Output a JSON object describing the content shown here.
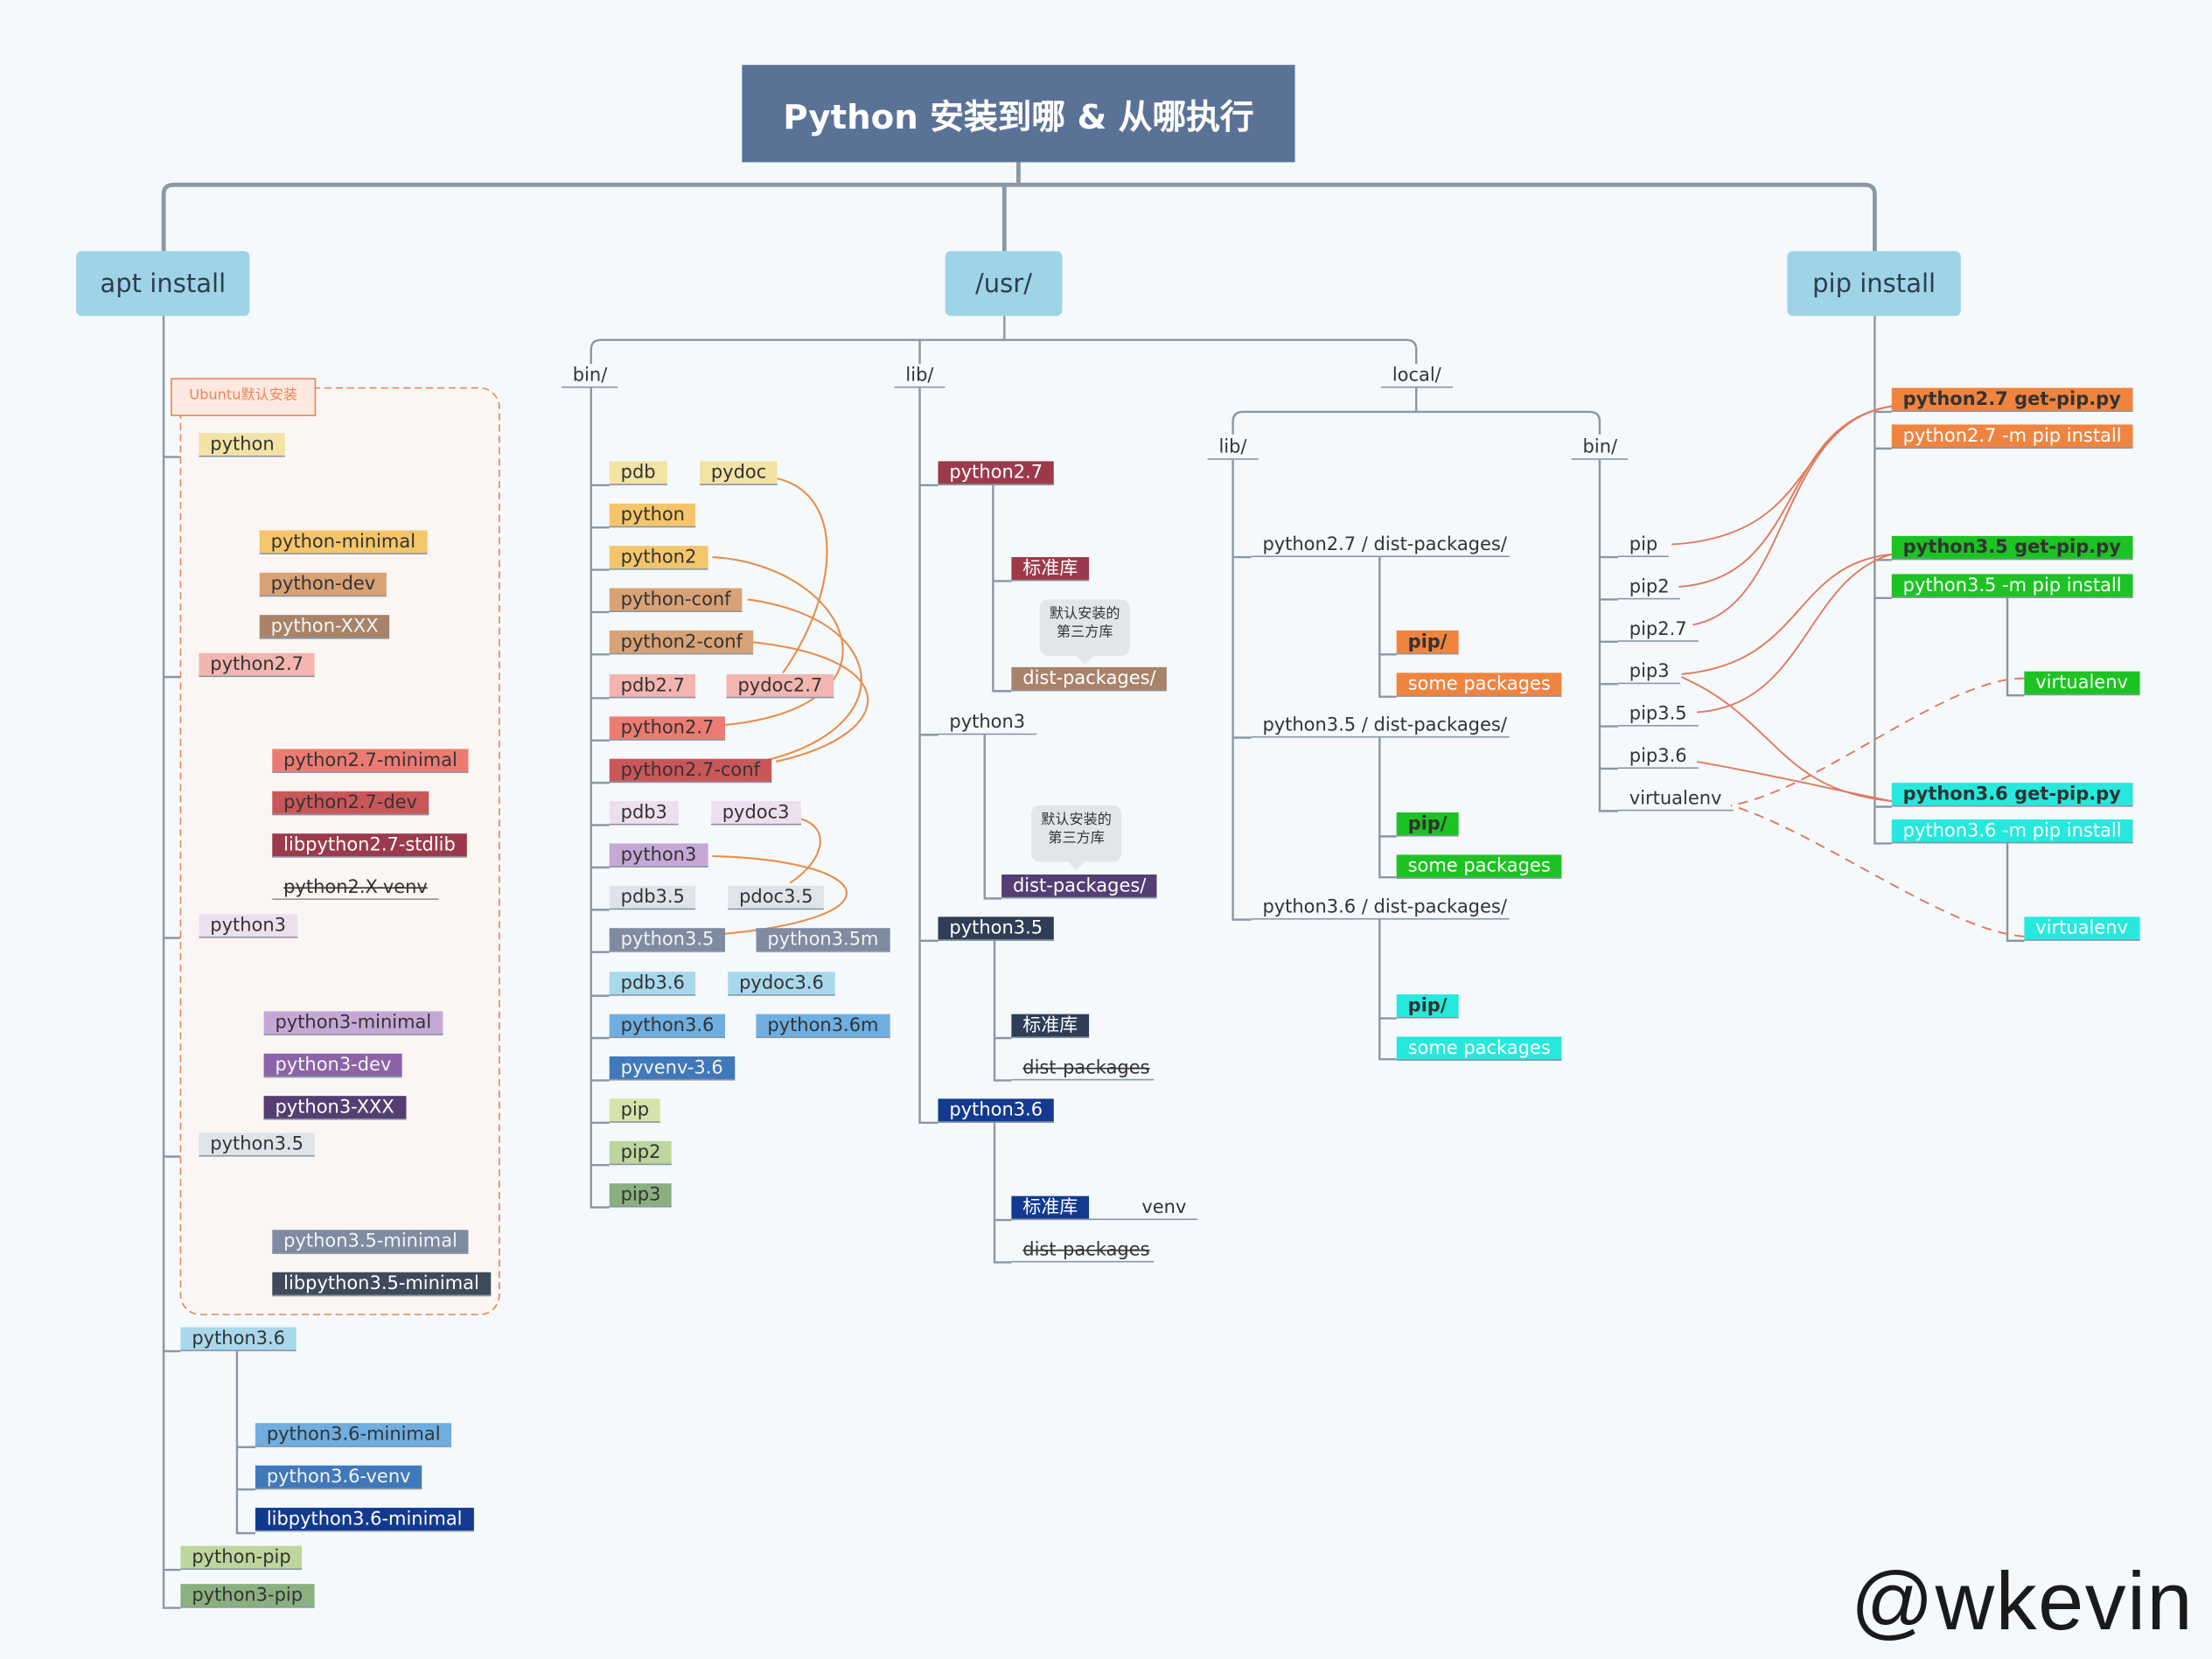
{
  "title": "Python 安装到哪 & 从哪执行",
  "watermark": "@wkevin",
  "colors": {
    "title_bg": "#5b7297",
    "branch_bg": "#9fd3e8",
    "arrow": "#e27a5e",
    "line": "#8a97a5"
  },
  "branches": {
    "apt": "apt install",
    "usr": "/usr/",
    "pip": "pip install"
  },
  "ubuntu_label": "Ubuntu默认安装",
  "usr_dirs": {
    "bin": "bin/",
    "lib": "lib/",
    "local": "local/",
    "local_lib": "lib/",
    "local_bin": "bin/"
  },
  "apt": {
    "python": "python",
    "python_minimal": "python-minimal",
    "python_dev": "python-dev",
    "python_xxx": "python-XXX",
    "python27": "python2.7",
    "python27_minimal": "python2.7-minimal",
    "python27_dev": "python2.7-dev",
    "libpython27_stdlib": "libpython2.7-stdlib",
    "python2x_venv": "python2.X-venv",
    "python3": "python3",
    "python3_minimal": "python3-minimal",
    "python3_dev": "python3-dev",
    "python3_xxx": "python3-XXX",
    "python35": "python3.5",
    "python35_minimal": "python3.5-minimal",
    "libpython35_minimal": "libpython3.5-minimal",
    "python36": "python3.6",
    "python36_minimal": "python3.6-minimal",
    "python36_venv": "python3.6-venv",
    "libpython36_minimal": "libpython3.6-minimal",
    "python_pip": "python-pip",
    "python3_pip": "python3-pip"
  },
  "bin": {
    "pdb": "pdb",
    "pydoc": "pydoc",
    "python": "python",
    "python2": "python2",
    "python_conf": "python-conf",
    "python2_conf": "python2-conf",
    "pdb27": "pdb2.7",
    "pydoc27": "pydoc2.7",
    "python27": "python2.7",
    "python27_conf": "python2.7-conf",
    "pdb3": "pdb3",
    "pydoc3": "pydoc3",
    "python3": "python3",
    "pdb35": "pdb3.5",
    "pdoc35": "pdoc3.5",
    "python35": "python3.5",
    "python35m": "python3.5m",
    "pdb36": "pdb3.6",
    "pydoc36": "pydoc3.6",
    "python36": "python3.6",
    "python36m": "python3.6m",
    "pyvenv36": "pyvenv-3.6",
    "pip": "pip",
    "pip2": "pip2",
    "pip3": "pip3"
  },
  "lib": {
    "python27": "python2.7",
    "stdlib27": "标准库",
    "bubble": "默认安装的\n第三方库",
    "dist27": "dist-packages/",
    "python3": "python3",
    "dist3": "dist-packages/",
    "python35": "python3.5",
    "stdlib35": "标准库",
    "dist35": "dist-packages",
    "python36": "python3.6",
    "stdlib36": "标准库",
    "venv": "venv",
    "dist36": "dist-packages"
  },
  "local": {
    "lib27": "python2.7 / dist-packages/",
    "lib35": "python3.5 / dist-packages/",
    "lib36": "python3.6 / dist-packages/",
    "pip_dir": "pip/",
    "some": "some packages",
    "pip": "pip",
    "pip2": "pip2",
    "pip27": "pip2.7",
    "pip3": "pip3",
    "pip35": "pip3.5",
    "pip36": "pip3.6",
    "virtualenv": "virtualenv"
  },
  "pipinst": {
    "get27": "python2.7 get-pip.py",
    "m27": "python2.7 -m pip install",
    "get35": "python3.5 get-pip.py",
    "m35": "python3.5 -m pip install",
    "venv35": "virtualenv",
    "get36": "python3.6 get-pip.py",
    "m36": "python3.6 -m pip install",
    "venv36": "virtualenv"
  }
}
